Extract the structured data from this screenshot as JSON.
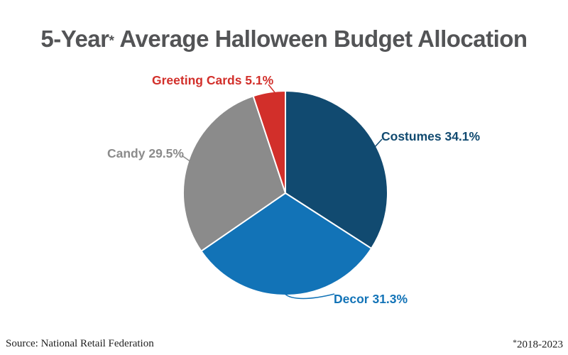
{
  "title": {
    "part1": "5-Year",
    "asterisk": "*",
    "part2": " Average Halloween Budget Allocation"
  },
  "chart_data": {
    "type": "pie",
    "title": "5-Year* Average Halloween Budget Allocation",
    "unit": "%",
    "start_angle": "12-oclock",
    "direction": "clockwise",
    "slices": [
      {
        "label": "Costumes",
        "value": 34.1,
        "label_text": "Costumes 34.1%",
        "color": "#114a70"
      },
      {
        "label": "Decor",
        "value": 31.3,
        "label_text": "Decor 31.3%",
        "color": "#1273b7"
      },
      {
        "label": "Candy",
        "value": 29.5,
        "label_text": "Candy 29.5%",
        "color": "#8b8b8b"
      },
      {
        "label": "Greeting Cards",
        "value": 5.1,
        "label_text": "Greeting Cards 5.1%",
        "color": "#d22f2a"
      }
    ]
  },
  "footer": {
    "source": "Source: National Retail Federation",
    "note_asterisk": "*",
    "note_years": "2018-2023"
  },
  "colors": {
    "title": "#535456",
    "background": "#ffffff",
    "slice_divider": "#ffffff"
  }
}
